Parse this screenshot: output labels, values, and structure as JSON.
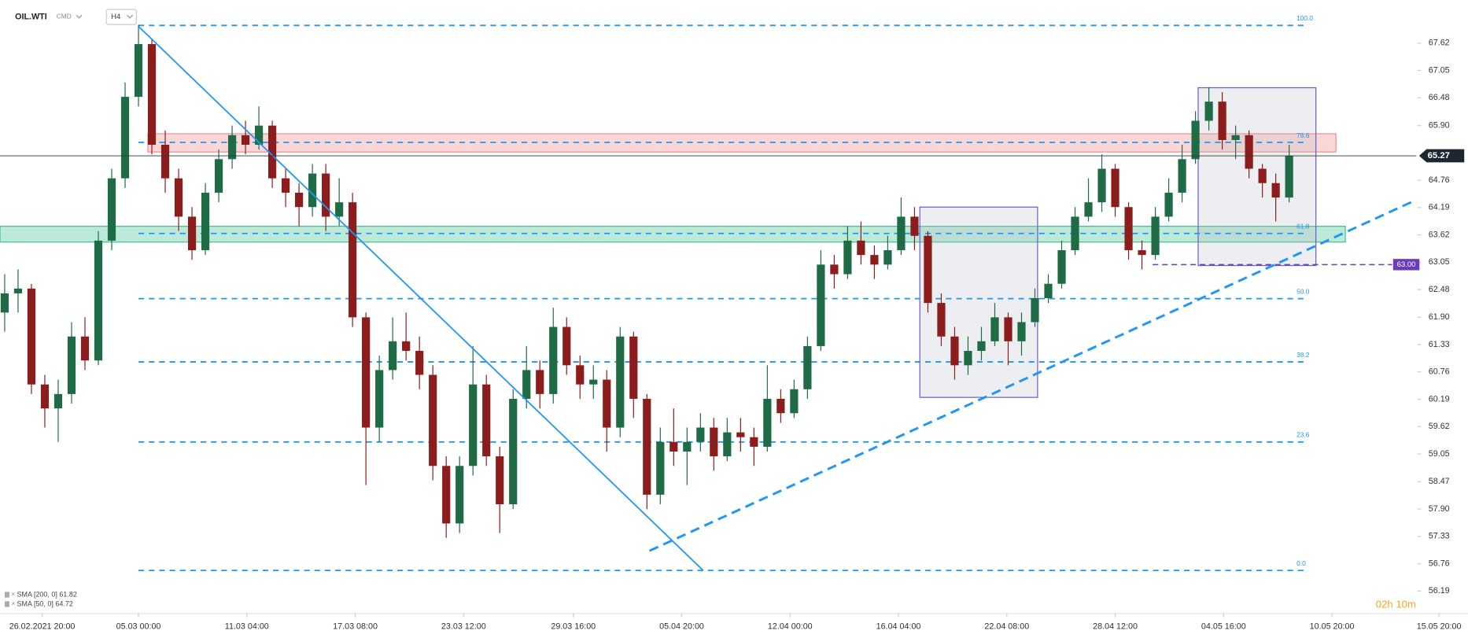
{
  "chart_data": {
    "type": "candlestick",
    "symbol": "OIL.WTI",
    "market": "CMD",
    "timeframe": "H4",
    "open": [
      62.0,
      62.4,
      62.5,
      60.5,
      60.0,
      60.3,
      61.5,
      61.0,
      63.5,
      64.8,
      66.5,
      67.6,
      65.5,
      64.8,
      64.0,
      63.3,
      64.5,
      65.2,
      65.7,
      65.5,
      65.9,
      64.8,
      64.5,
      64.2,
      64.9,
      64.0,
      64.3,
      61.9,
      59.6,
      60.8,
      61.4,
      61.2,
      60.7,
      58.8,
      57.6,
      58.8,
      60.5,
      59.0,
      58.0,
      60.2,
      60.8,
      60.3,
      61.7,
      60.9,
      60.5,
      60.6,
      59.6,
      61.5,
      60.2,
      58.2,
      59.3,
      59.1,
      59.3,
      59.6,
      59.0,
      59.5,
      59.4,
      59.2,
      60.2,
      59.9,
      60.4,
      61.3,
      63.0,
      62.8,
      63.5,
      63.2,
      63.0,
      63.3,
      64.0,
      63.6,
      62.2,
      61.5,
      60.9,
      61.2,
      61.4,
      61.9,
      61.4,
      61.8,
      62.3,
      62.6,
      63.3,
      64.0,
      64.3,
      65.0,
      64.2,
      63.3,
      63.2,
      64.0,
      64.5,
      65.2,
      66.0,
      66.4,
      65.6,
      65.7,
      65.0,
      64.7,
      64.4
    ],
    "high": [
      62.8,
      62.9,
      62.6,
      60.7,
      60.6,
      61.8,
      61.9,
      63.7,
      65.0,
      66.8,
      68.0,
      67.7,
      65.8,
      65.0,
      64.2,
      64.7,
      65.4,
      65.9,
      66.0,
      66.3,
      66.0,
      65.0,
      64.7,
      65.1,
      65.1,
      64.8,
      64.5,
      62.0,
      61.1,
      61.9,
      62.0,
      61.5,
      60.9,
      59.0,
      59.0,
      61.3,
      60.7,
      59.2,
      60.4,
      61.3,
      61.0,
      62.1,
      61.9,
      61.1,
      60.9,
      60.8,
      61.7,
      61.6,
      60.3,
      59.6,
      60.0,
      59.6,
      59.9,
      59.8,
      59.8,
      59.8,
      59.6,
      60.9,
      60.4,
      60.6,
      61.5,
      63.3,
      63.2,
      63.8,
      63.9,
      63.4,
      63.6,
      64.4,
      64.2,
      63.7,
      62.4,
      61.7,
      61.5,
      61.7,
      62.2,
      62.0,
      62.0,
      62.5,
      62.8,
      63.5,
      64.2,
      64.8,
      65.3,
      65.1,
      64.3,
      63.5,
      64.2,
      64.8,
      65.5,
      66.2,
      66.7,
      66.6,
      65.9,
      65.8,
      65.1,
      64.9,
      65.5
    ],
    "low": [
      61.6,
      62.0,
      60.3,
      59.6,
      59.3,
      60.1,
      60.8,
      60.9,
      63.3,
      64.6,
      66.3,
      65.3,
      64.5,
      63.7,
      63.1,
      63.2,
      64.3,
      65.0,
      65.3,
      65.4,
      64.6,
      64.2,
      63.8,
      64.0,
      63.7,
      63.8,
      61.7,
      58.4,
      59.3,
      60.6,
      61.0,
      60.4,
      58.5,
      57.3,
      57.4,
      58.6,
      58.8,
      57.4,
      57.9,
      60.0,
      60.0,
      60.1,
      60.7,
      60.2,
      60.2,
      59.1,
      59.4,
      59.8,
      57.9,
      58.0,
      58.8,
      58.4,
      59.1,
      58.7,
      58.9,
      59.1,
      58.8,
      59.1,
      59.7,
      59.8,
      60.2,
      61.2,
      62.5,
      62.7,
      63.0,
      62.7,
      62.9,
      63.2,
      63.3,
      62.0,
      61.3,
      60.6,
      60.7,
      61.0,
      61.3,
      60.9,
      61.1,
      61.7,
      62.2,
      62.5,
      63.2,
      63.9,
      64.1,
      64.0,
      63.1,
      62.9,
      63.1,
      63.9,
      64.3,
      65.1,
      65.8,
      65.4,
      65.2,
      64.8,
      64.4,
      63.9,
      64.3
    ],
    "close": [
      62.4,
      62.5,
      60.5,
      60.0,
      60.3,
      61.5,
      61.0,
      63.5,
      64.8,
      66.5,
      67.6,
      65.5,
      64.8,
      64.0,
      63.3,
      64.5,
      65.2,
      65.7,
      65.5,
      65.9,
      64.8,
      64.5,
      64.2,
      64.9,
      64.0,
      64.3,
      61.9,
      59.6,
      60.8,
      61.4,
      61.2,
      60.7,
      58.8,
      57.6,
      58.8,
      60.5,
      59.0,
      58.0,
      60.2,
      60.8,
      60.3,
      61.7,
      60.9,
      60.5,
      60.6,
      59.6,
      61.5,
      60.2,
      58.2,
      59.3,
      59.1,
      59.3,
      59.6,
      59.0,
      59.5,
      59.4,
      59.2,
      60.2,
      59.9,
      60.4,
      61.3,
      63.0,
      62.8,
      63.5,
      63.2,
      63.0,
      63.3,
      64.0,
      63.6,
      62.2,
      61.5,
      60.9,
      61.2,
      61.4,
      61.9,
      61.4,
      61.8,
      62.3,
      62.6,
      63.3,
      64.0,
      64.3,
      65.0,
      64.2,
      63.3,
      63.2,
      64.0,
      64.5,
      65.2,
      66.0,
      66.4,
      65.6,
      65.7,
      65.0,
      64.7,
      64.4,
      65.27
    ],
    "up_color": "#1e6b45",
    "down_color": "#8c1d1d",
    "xlim": [
      -0.35,
      105.5
    ],
    "ylim": [
      55.76,
      68.52
    ],
    "xticks": [
      {
        "value": 2.8,
        "label": "26.02.2021  20:00"
      },
      {
        "value": 10.0,
        "label": "05.03  00:00"
      },
      {
        "value": 18.1,
        "label": "11.03  04:00"
      },
      {
        "value": 26.2,
        "label": "17.03  08:00"
      },
      {
        "value": 34.3,
        "label": "23.03  12:00"
      },
      {
        "value": 42.5,
        "label": "29.03  16:00"
      },
      {
        "value": 50.6,
        "label": "05.04  20:00"
      },
      {
        "value": 58.7,
        "label": "12.04  00:00"
      },
      {
        "value": 66.8,
        "label": "16.04  04:00"
      },
      {
        "value": 74.9,
        "label": "22.04  08:00"
      },
      {
        "value": 83.0,
        "label": "28.04  12:00"
      },
      {
        "value": 91.1,
        "label": "04.05  16:00"
      },
      {
        "value": 99.2,
        "label": "10.05  20:00"
      },
      {
        "value": 107.2,
        "label": "15.05  20:00"
      }
    ],
    "yticks": [
      67.62,
      67.05,
      66.48,
      {
        "value": 65.9,
        "label": "65.90"
      },
      64.76,
      64.19,
      63.62,
      63.05,
      62.48,
      {
        "value": 61.9,
        "label": "61.90"
      },
      61.33,
      60.76,
      60.19,
      59.62,
      59.05,
      58.47,
      {
        "value": 57.9,
        "label": "57.90"
      },
      57.33,
      56.76,
      56.19
    ],
    "fib_x": [
      10.0,
      97.4
    ],
    "fib_levels": [
      {
        "label": "100.0",
        "price": 67.99
      },
      {
        "label": "78.6",
        "price": 65.55
      },
      {
        "label": "61.8",
        "price": 63.65
      },
      {
        "label": "50.0",
        "price": 62.29
      },
      {
        "label": "38.2",
        "price": 60.97
      },
      {
        "label": "23.6",
        "price": 59.3
      },
      {
        "label": "0.0",
        "price": 56.62
      }
    ],
    "zones": [
      {
        "from": 65.35,
        "to": 65.73,
        "x": [
          10.7,
          99.5
        ],
        "color": "#f28b8b"
      },
      {
        "from": 63.47,
        "to": 63.8,
        "x": [
          -0.35,
          100.2
        ],
        "color": "#3fbf8f"
      }
    ],
    "boxes": [
      {
        "x": [
          68.4,
          77.2
        ],
        "top": 64.2,
        "bottom": 60.23
      },
      {
        "x": [
          89.2,
          98.0
        ],
        "top": 66.69,
        "bottom": 62.98
      }
    ],
    "trend_lines": [
      {
        "x": [
          10.0,
          52.2
        ],
        "y": [
          67.97,
          56.62
        ],
        "dashed": false
      },
      {
        "x": [
          48.2,
          105.5
        ],
        "y": [
          57.03,
          64.35
        ],
        "dashed": true
      }
    ],
    "support_line": {
      "value": 63,
      "label": "63.00",
      "x": [
        85.8,
        103.7
      ]
    },
    "indicators": [
      "SMA [200, 0]  61.82",
      "SMA [50, 0]  64.72"
    ],
    "countdown": "02h 10m"
  }
}
